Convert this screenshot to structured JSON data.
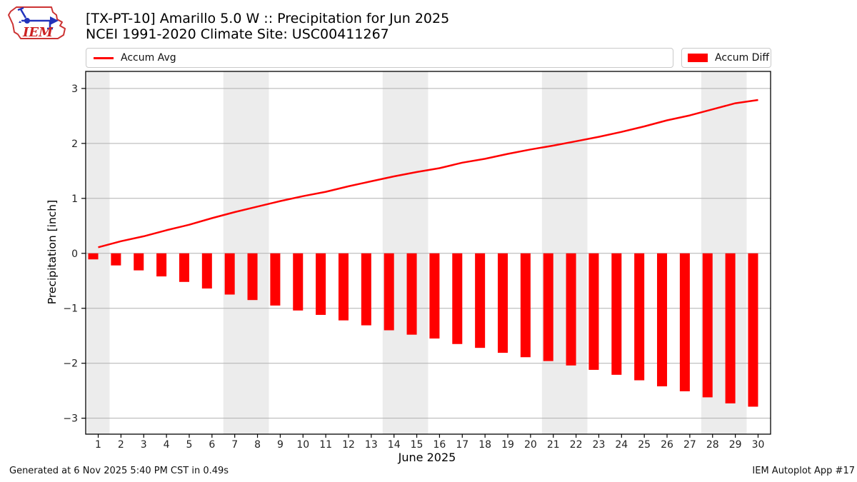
{
  "header": {
    "logo": {
      "text": "IEM",
      "outline_color": "#cc3333",
      "instrument_color": "#2233bb"
    },
    "title_line1": "[TX-PT-10] Amarillo 5.0 W :: Precipitation for Jun 2025",
    "title_line2": "NCEI 1991-2020 Climate Site: USC00411267"
  },
  "legend": {
    "avg": {
      "label": "Accum Avg",
      "swatch": "line",
      "color": "#ff0000"
    },
    "diff": {
      "label": "Accum Diff",
      "swatch": "bar",
      "color": "#ff0000"
    }
  },
  "footer": {
    "generated": "Generated at 6 Nov 2025 5:40 PM CST in 0.49s",
    "app": "IEM Autoplot App #17"
  },
  "chart_data": {
    "type": "bar",
    "title": "[TX-PT-10] Amarillo 5.0 W :: Precipitation for Jun 2025",
    "subtitle": "NCEI 1991-2020 Climate Site: USC00411267",
    "xlabel": "June 2025",
    "ylabel": "Precipitation [inch]",
    "x": [
      1,
      2,
      3,
      4,
      5,
      6,
      7,
      8,
      9,
      10,
      11,
      12,
      13,
      14,
      15,
      16,
      17,
      18,
      19,
      20,
      21,
      22,
      23,
      24,
      25,
      26,
      27,
      28,
      29,
      30
    ],
    "series": [
      {
        "name": "Accum Avg",
        "type": "line",
        "color": "#ff0000",
        "values": [
          0.11,
          0.22,
          0.31,
          0.42,
          0.52,
          0.64,
          0.75,
          0.85,
          0.95,
          1.04,
          1.12,
          1.22,
          1.31,
          1.4,
          1.48,
          1.55,
          1.65,
          1.72,
          1.81,
          1.89,
          1.96,
          2.04,
          2.12,
          2.21,
          2.31,
          2.42,
          2.51,
          2.62,
          2.73,
          2.79
        ]
      },
      {
        "name": "Accum Diff",
        "type": "bar",
        "color": "#ff0000",
        "values": [
          -0.11,
          -0.22,
          -0.31,
          -0.42,
          -0.52,
          -0.64,
          -0.75,
          -0.85,
          -0.95,
          -1.04,
          -1.12,
          -1.22,
          -1.31,
          -1.4,
          -1.48,
          -1.55,
          -1.65,
          -1.72,
          -1.81,
          -1.89,
          -1.96,
          -2.04,
          -2.12,
          -2.21,
          -2.31,
          -2.42,
          -2.51,
          -2.62,
          -2.73,
          -2.79
        ]
      }
    ],
    "xlim": [
      0.45,
      30.55
    ],
    "ylim": [
      -3.29,
      3.31
    ],
    "yticks": [
      -3,
      -2,
      -1,
      0,
      1,
      2,
      3
    ],
    "grid": "horizontal-only",
    "grid_color": "#b0b0b0",
    "spine_color": "#000000",
    "tick_label_color": "#222222",
    "weekend_bands": {
      "color": "#ececec",
      "ranges": [
        [
          0.5,
          1.5
        ],
        [
          6.5,
          8.5
        ],
        [
          13.5,
          15.5
        ],
        [
          20.5,
          22.5
        ],
        [
          27.5,
          29.5
        ]
      ]
    },
    "legend_position": "top",
    "bar_align": "right-edge",
    "bar_width_days": 0.44
  }
}
